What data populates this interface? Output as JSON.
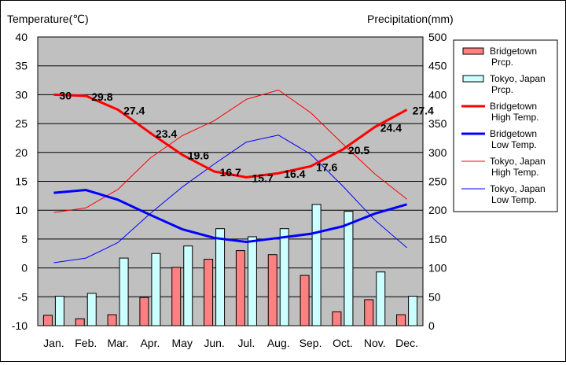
{
  "chart_data": {
    "type": "bar+line",
    "categories": [
      "Jan.",
      "Feb.",
      "Mar.",
      "Apr.",
      "May",
      "Jun.",
      "Jul.",
      "Aug.",
      "Sep.",
      "Oct.",
      "Nov.",
      "Dec."
    ],
    "left_axis": {
      "label": "Temperature(℃)",
      "ylim": [
        -10,
        40
      ],
      "ticks": [
        "40",
        "35",
        "30",
        "25",
        "20",
        "15",
        "10",
        "5",
        "0",
        "-5",
        "-10"
      ]
    },
    "right_axis": {
      "label": "Precipitation(mm)",
      "ylim": [
        0,
        500
      ],
      "ticks": [
        "500",
        "450",
        "400",
        "350",
        "300",
        "250",
        "200",
        "150",
        "100",
        "50",
        "0"
      ]
    },
    "grid": "horizontal",
    "plot_background": "#c0c0c0",
    "legend_position": "right",
    "bars": [
      {
        "name": "Bridgetown\nPrcp.",
        "color": "#ff8080",
        "values": [
          18,
          12,
          19,
          49,
          101,
          115,
          130,
          123,
          87,
          24,
          45,
          19
        ]
      },
      {
        "name": "Tokyo, Japan\nPrcp.",
        "color": "#ccffff",
        "values": [
          51,
          56,
          117,
          125,
          138,
          168,
          154,
          168,
          210,
          198,
          93,
          51
        ]
      }
    ],
    "lines": [
      {
        "name": "Bridgetown\nHigh Temp.",
        "color": "#ff0000",
        "width": 3,
        "values": [
          30,
          29.8,
          27.4,
          23.4,
          19.6,
          16.7,
          15.7,
          16.4,
          17.6,
          20.5,
          24.4,
          27.4
        ],
        "labels": [
          "30",
          "29.8",
          "27.4",
          "23.4",
          "19.6",
          "16.7",
          "15.7",
          "16.4",
          "17.6",
          "20.5",
          "24.4",
          "27.4"
        ]
      },
      {
        "name": "Bridgetown\nLow Temp.",
        "color": "#0000ff",
        "width": 3,
        "values": [
          13.0,
          13.5,
          11.8,
          9.2,
          6.7,
          5.2,
          4.5,
          5.2,
          5.9,
          7.2,
          9.4,
          11.0
        ]
      },
      {
        "name": "Tokyo, Japan\nHigh Temp.",
        "color": "#ff0000",
        "width": 1,
        "values": [
          9.6,
          10.4,
          13.6,
          19.0,
          22.9,
          25.5,
          29.2,
          30.8,
          26.9,
          21.5,
          16.3,
          11.9
        ]
      },
      {
        "name": "Tokyo, Japan\nLow Temp.",
        "color": "#0000ff",
        "width": 1,
        "values": [
          0.9,
          1.7,
          4.4,
          9.4,
          14.0,
          18.0,
          21.8,
          23.0,
          19.7,
          14.2,
          8.3,
          3.5
        ]
      }
    ]
  }
}
